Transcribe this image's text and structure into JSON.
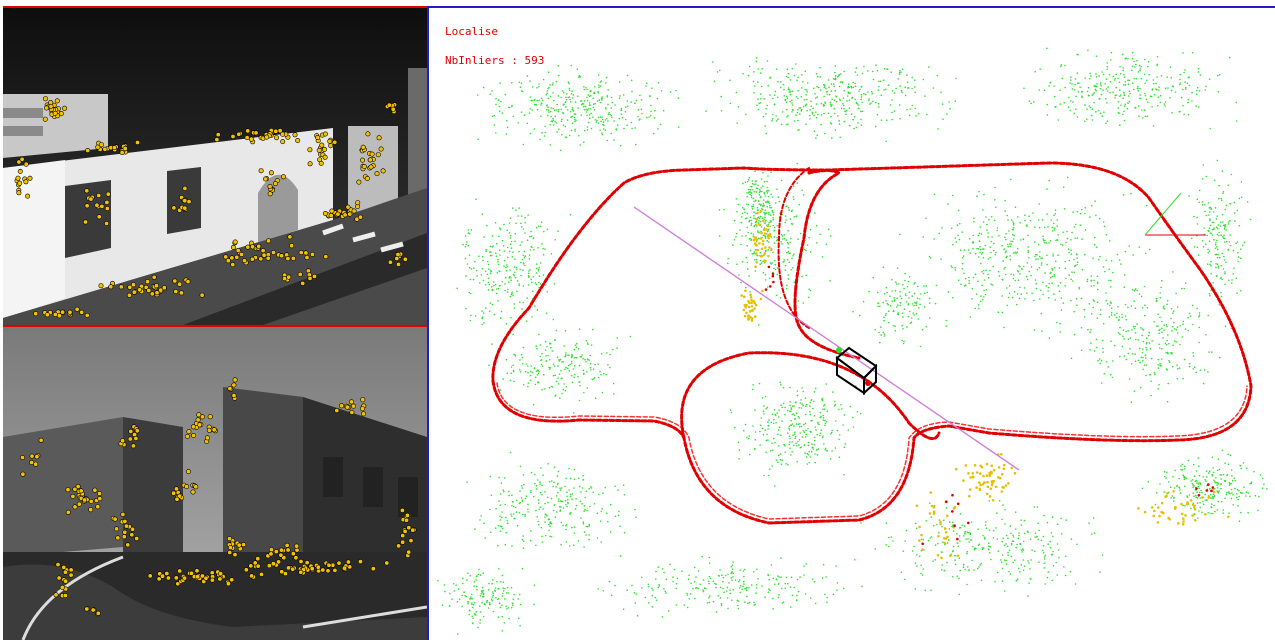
{
  "overlay": {
    "status": "Localise",
    "inliers_text": "NbInliers : 593"
  },
  "colors": {
    "panel_border_camera": "#e00000",
    "panel_border_map": "#1e1ec8",
    "overlay_text": "#e00000",
    "feature_point": "#f2c200",
    "trajectory": "#e00000",
    "map_points": "#2ee02e",
    "map_points_tracked": "#e6c000",
    "sight_line": "#d080d8",
    "camera_frustum": "#000000"
  },
  "icons": {
    "camera_pose": "camera-frustum-icon"
  }
}
